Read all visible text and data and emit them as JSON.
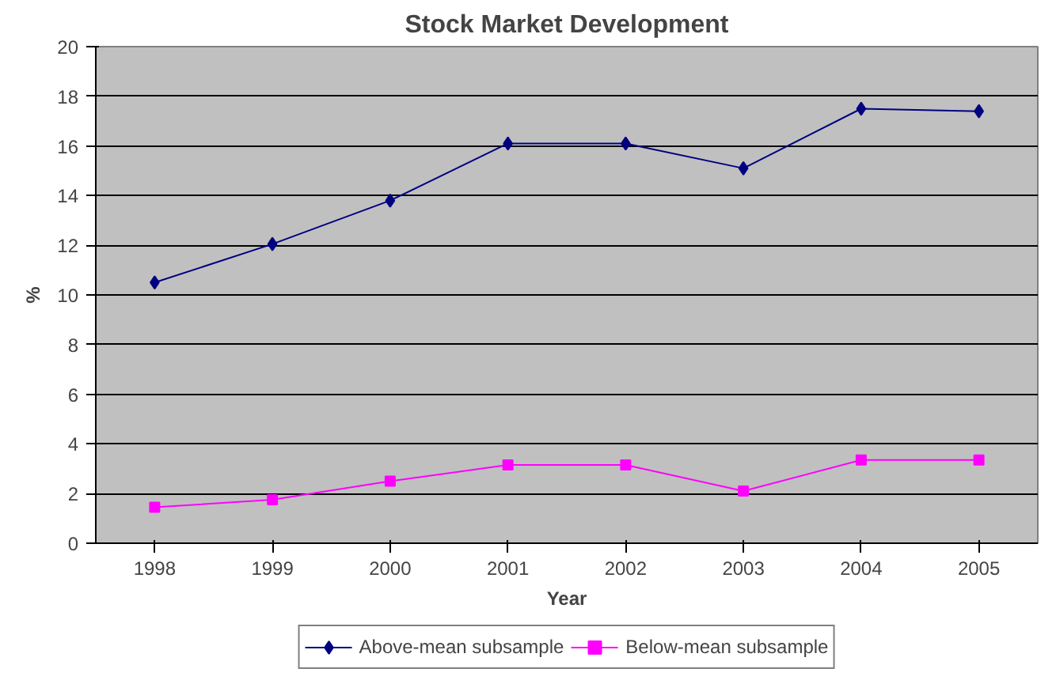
{
  "chart_data": {
    "type": "line",
    "title": "Stock Market Development",
    "xlabel": "Year",
    "ylabel": "%",
    "categories": [
      "1998",
      "1999",
      "2000",
      "2001",
      "2002",
      "2003",
      "2004",
      "2005"
    ],
    "series": [
      {
        "name": "Above-mean subsample",
        "color": "#000080",
        "marker": "diamond",
        "values": [
          10.5,
          12.05,
          13.8,
          16.1,
          16.1,
          15.1,
          17.5,
          17.4
        ]
      },
      {
        "name": "Below-mean subsample",
        "color": "#ff00ff",
        "marker": "square",
        "values": [
          1.45,
          1.75,
          2.5,
          3.15,
          3.15,
          2.1,
          3.35,
          3.35
        ]
      }
    ],
    "ylim": [
      0,
      20
    ],
    "yticks": [
      0,
      2,
      4,
      6,
      8,
      10,
      12,
      14,
      16,
      18,
      20
    ],
    "grid": "y",
    "legend": "bottom",
    "line_style": "solid"
  }
}
